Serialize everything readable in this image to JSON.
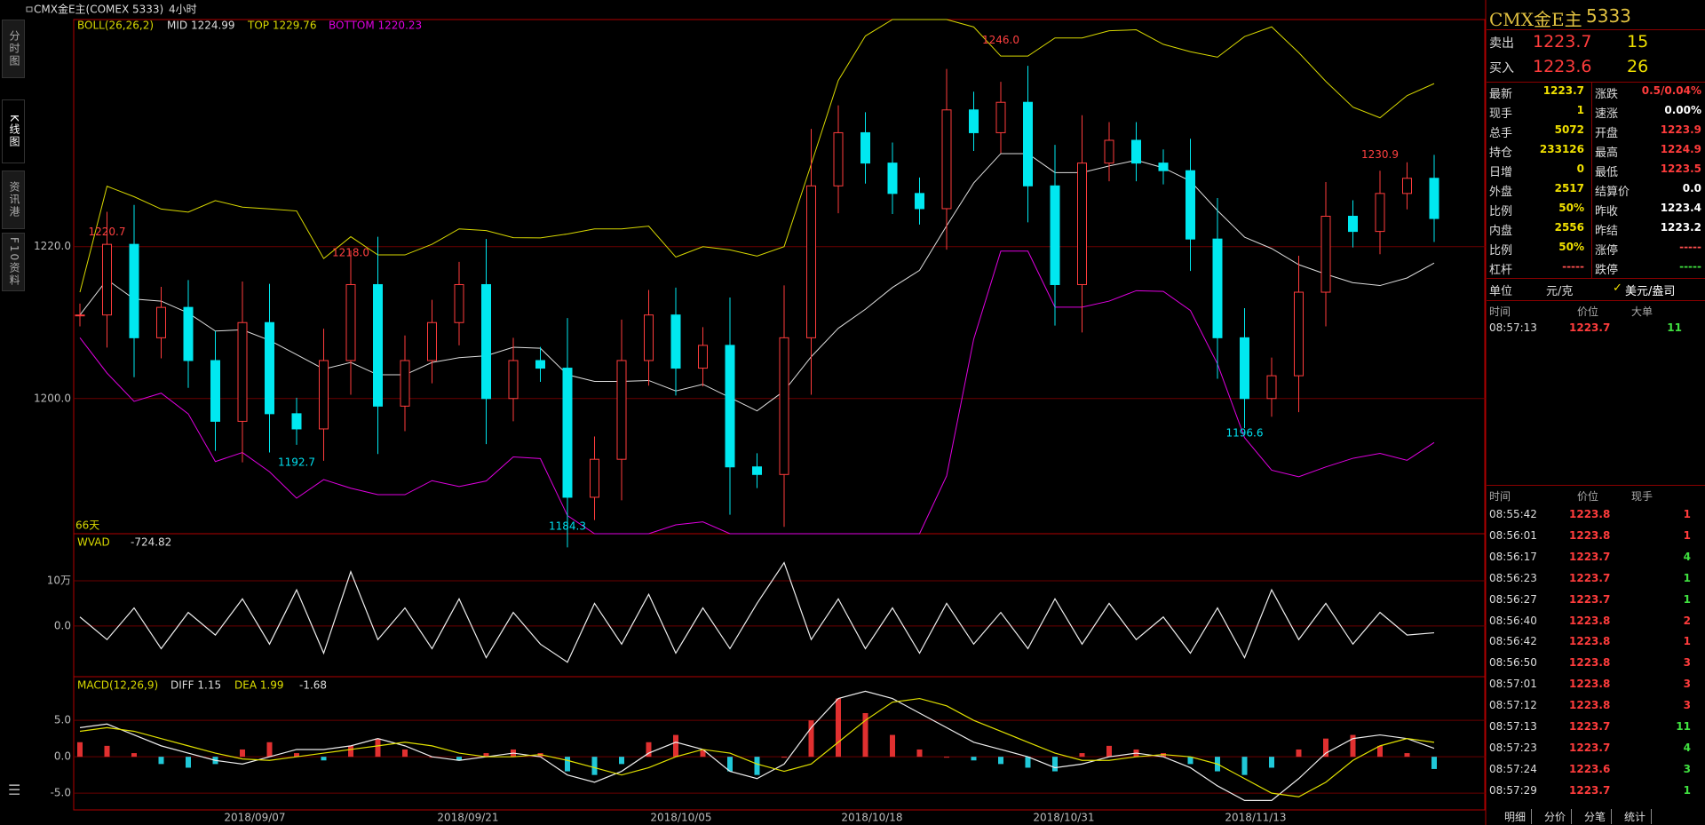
{
  "header": {
    "title": "CMX金E主(COMEX 5333)",
    "period": "4小时"
  },
  "sidebar": [
    "分时图",
    "K线图",
    "资讯港",
    "F10资料"
  ],
  "date_labels": [
    "2018/09/07",
    "2018/09/21",
    "2018/10/05",
    "2018/10/18",
    "2018/10/31",
    "2018/11/13"
  ],
  "chart_data": [
    {
      "type": "candlestick",
      "indicator": "BOLL(26,26,2)",
      "mid": "MID 1224.99",
      "top": "TOP 1229.76",
      "bottom": "BOTTOM 1220.23",
      "note": "66天",
      "closes": [
        1211,
        1220.3,
        1208,
        1212,
        1205,
        1197,
        1210,
        1198,
        1196,
        1205,
        1215,
        1199,
        1205,
        1210,
        1215,
        1200,
        1205,
        1204,
        1187,
        1192,
        1205,
        1211,
        1204,
        1207,
        1191,
        1190,
        1208,
        1228,
        1235,
        1231,
        1227,
        1225,
        1238,
        1235,
        1239,
        1228,
        1215,
        1231,
        1234,
        1231,
        1230,
        1221,
        1208,
        1200,
        1203,
        1214,
        1224,
        1222,
        1227,
        1229,
        1223.7
      ],
      "ylim": [
        1182.2,
        1249.9
      ],
      "yticks": [
        {
          "value": 1220,
          "label": "1220.0"
        },
        {
          "value": 1200,
          "label": "1200.0"
        }
      ],
      "annotations": [
        {
          "value": 1220.7,
          "label": "1220.7"
        },
        {
          "value": 1218.0,
          "label": "1218.0"
        },
        {
          "value": 1192.7,
          "label": "1192.7"
        },
        {
          "value": 1184.3,
          "label": "1184.3"
        },
        {
          "value": 1246.0,
          "label": "1246.0"
        },
        {
          "value": 1196.6,
          "label": "1196.6"
        },
        {
          "value": 1230.9,
          "label": "1230.9"
        }
      ]
    },
    {
      "type": "line",
      "indicator": "WVAD",
      "value_label": "-724.82",
      "values": [
        2,
        -3,
        4,
        -5,
        3,
        -2,
        6,
        -4,
        8,
        -6,
        12,
        -3,
        4,
        -5,
        6,
        -7,
        3,
        -4,
        -8,
        5,
        -4,
        7,
        -6,
        4,
        -5,
        5,
        14,
        -3,
        6,
        -5,
        4,
        -6,
        5,
        -4,
        3,
        -5,
        6,
        -4,
        5,
        -3,
        2,
        -6,
        4,
        -7,
        8,
        -3,
        5,
        -4,
        3,
        -2,
        -1.5
      ],
      "ylim": [
        -11.2,
        20.4
      ],
      "yticks": [
        {
          "value": 10,
          "label": "10万"
        },
        {
          "value": 0,
          "label": "0.0"
        }
      ]
    },
    {
      "type": "macd",
      "indicator": "MACD(12,26,9)",
      "diff_label": "DIFF 1.15",
      "dea_label": "DEA 1.99",
      "hist_label": "-1.68",
      "hist": [
        2,
        1.5,
        0.5,
        -1,
        -1.5,
        -1,
        1,
        2,
        0.5,
        -0.5,
        1.5,
        2.5,
        1,
        0,
        -0.5,
        0.5,
        1,
        0.5,
        -2,
        -2.5,
        -1,
        2,
        3,
        1,
        -2,
        -2.5,
        0,
        5,
        8,
        6,
        3,
        1,
        0,
        -0.5,
        -1,
        -1.5,
        -2,
        0.5,
        1.5,
        1,
        0.5,
        -1,
        -2,
        -2.5,
        -1.5,
        1,
        2.5,
        3,
        1.5,
        0.5,
        -1.68
      ],
      "diff": [
        4,
        4.5,
        3,
        1.5,
        0.5,
        -0.5,
        -1,
        0,
        1,
        1,
        1.5,
        2.5,
        1.5,
        0,
        -0.5,
        0,
        0.5,
        0,
        -2.5,
        -3.5,
        -2,
        0.5,
        2,
        1,
        -2,
        -3,
        -1,
        4,
        8,
        9,
        8,
        6,
        4,
        2,
        1,
        0,
        -1.5,
        -1,
        0,
        0.5,
        0,
        -1.5,
        -4,
        -6,
        -6,
        -3,
        0.5,
        2.5,
        3,
        2.5,
        1.15
      ],
      "dea": [
        3.5,
        4,
        3.5,
        2.5,
        1.5,
        0.5,
        -0.3,
        -0.5,
        0,
        0.5,
        1,
        1.5,
        2,
        1.5,
        0.5,
        0,
        0,
        0.3,
        -0.5,
        -1.5,
        -2.5,
        -1.5,
        0,
        1,
        0.5,
        -1,
        -2,
        -1,
        2,
        5,
        7.5,
        8,
        7,
        5,
        3.5,
        2,
        0.5,
        -0.5,
        -0.5,
        0,
        0.3,
        0,
        -1,
        -3,
        -5,
        -5.5,
        -3.5,
        -0.5,
        1.5,
        2.5,
        1.99
      ],
      "ylim": [
        -7.3,
        11
      ],
      "yticks": [
        {
          "value": 5,
          "label": "5.0"
        },
        {
          "value": 0,
          "label": "0.0"
        },
        {
          "value": -5,
          "label": "-5.0"
        }
      ]
    }
  ],
  "quote": {
    "name": "CMX金E主",
    "code": "5333",
    "sell": {
      "label": "卖出",
      "price": "1223.7",
      "qty": "15"
    },
    "buy": {
      "label": "买入",
      "price": "1223.6",
      "qty": "26"
    },
    "stats": [
      [
        "最新",
        "1223.7",
        "涨跌",
        "0.5/0.04%"
      ],
      [
        "现手",
        "1",
        "速涨",
        "0.00%"
      ],
      [
        "总手",
        "5072",
        "开盘",
        "1223.9"
      ],
      [
        "持仓",
        "233126",
        "最高",
        "1224.9"
      ],
      [
        "日增",
        "0",
        "最低",
        "1223.5"
      ],
      [
        "外盘",
        "2517",
        "结算价",
        "0.0"
      ],
      [
        "比例",
        "50%",
        "昨收",
        "1223.4"
      ],
      [
        "内盘",
        "2556",
        "昨结",
        "1223.2"
      ],
      [
        "比例",
        "50%",
        "涨停",
        "-----"
      ],
      [
        "杠杆",
        "-----",
        "跌停",
        "-----"
      ]
    ],
    "unit": {
      "label": "单位",
      "cny": "元/克",
      "usd": "美元/盎司"
    },
    "big_orders": {
      "header": [
        "时间",
        "价位",
        "大单"
      ],
      "rows": [
        [
          "08:57:13",
          "1223.7",
          "11"
        ]
      ]
    },
    "ticks": {
      "header": [
        "时间",
        "价位",
        "现手"
      ],
      "rows": [
        [
          "08:55:42",
          "1223.8",
          "1"
        ],
        [
          "08:56:01",
          "1223.8",
          "1"
        ],
        [
          "08:56:17",
          "1223.7",
          "4"
        ],
        [
          "08:56:23",
          "1223.7",
          "1"
        ],
        [
          "08:56:27",
          "1223.7",
          "1"
        ],
        [
          "08:56:40",
          "1223.8",
          "2"
        ],
        [
          "08:56:42",
          "1223.8",
          "1"
        ],
        [
          "08:56:50",
          "1223.8",
          "3"
        ],
        [
          "08:57:01",
          "1223.8",
          "3"
        ],
        [
          "08:57:12",
          "1223.8",
          "3"
        ],
        [
          "08:57:13",
          "1223.7",
          "11"
        ],
        [
          "08:57:23",
          "1223.7",
          "4"
        ],
        [
          "08:57:24",
          "1223.6",
          "3"
        ],
        [
          "08:57:29",
          "1223.7",
          "1"
        ]
      ]
    },
    "tabs": [
      "明细",
      "分价",
      "分笔",
      "统计"
    ]
  }
}
